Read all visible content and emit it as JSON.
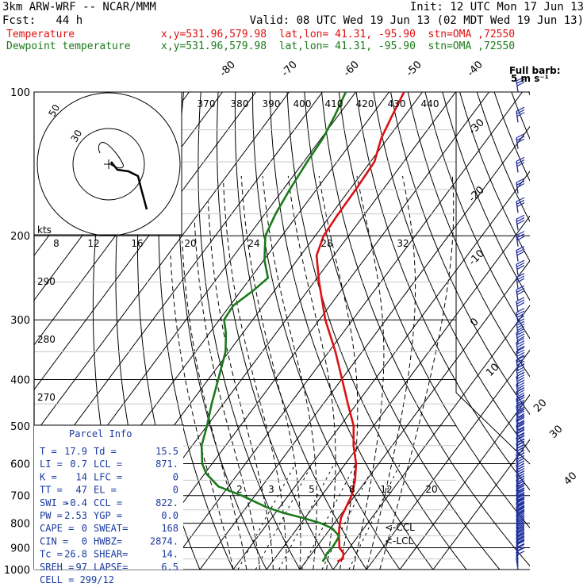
{
  "header": {
    "model": "3km ARW-WRF -- NCAR/MMM",
    "init": "Init: 12 UTC Mon 17 Jun 13",
    "fcst": "Fcst:   44 h",
    "valid": "Valid: 08 UTC Wed 19 Jun 13 (02 MDT Wed 19 Jun 13)",
    "temp_line": {
      "label": "Temperature",
      "info": "x,y=531.96,579.98  lat,lon= 41.31, -95.90  stn=OMA ,72550"
    },
    "dew_line": {
      "label": "Dewpoint temperature",
      "info": "x,y=531.96,579.98  lat,lon= 41.31, -95.90  stn=OMA ,72550"
    }
  },
  "colors": {
    "temperature": "#dd1111",
    "dewpoint": "#1b7a1b",
    "barbs": "#1f2f9f",
    "parcel_text": "#1a3aa0"
  },
  "chart_data": {
    "type": "line",
    "title": "",
    "y_axis": {
      "label": "",
      "scale": "log",
      "ylim": [
        1000,
        100
      ],
      "ticks": [
        100,
        200,
        300,
        400,
        500,
        600,
        700,
        800,
        900,
        1000
      ]
    },
    "series": [
      {
        "name": "Temperature",
        "color": "#dd1111",
        "points": [
          {
            "p": 962,
            "t": 19.5
          },
          {
            "p": 950,
            "t": 20.5
          },
          {
            "p": 925,
            "t": 19.5
          },
          {
            "p": 900,
            "t": 17.0
          },
          {
            "p": 850,
            "t": 14.2
          },
          {
            "p": 820,
            "t": 12.6
          },
          {
            "p": 780,
            "t": 10.8
          },
          {
            "p": 700,
            "t": 9.0
          },
          {
            "p": 650,
            "t": 6.6
          },
          {
            "p": 600,
            "t": 3.2
          },
          {
            "p": 550,
            "t": -1.6
          },
          {
            "p": 500,
            "t": -6.0
          },
          {
            "p": 450,
            "t": -12.6
          },
          {
            "p": 400,
            "t": -19.8
          },
          {
            "p": 350,
            "t": -28.0
          },
          {
            "p": 300,
            "t": -38.2
          },
          {
            "p": 250,
            "t": -48.5
          },
          {
            "p": 220,
            "t": -55.2
          },
          {
            "p": 200,
            "t": -57.5
          },
          {
            "p": 180,
            "t": -58.0
          },
          {
            "p": 160,
            "t": -58.2
          },
          {
            "p": 140,
            "t": -58.8
          },
          {
            "p": 125,
            "t": -62.0
          },
          {
            "p": 112,
            "t": -63.8
          },
          {
            "p": 100,
            "t": -65.5
          }
        ]
      },
      {
        "name": "Dewpoint temperature",
        "color": "#1b7a1b",
        "points": [
          {
            "p": 962,
            "t": 15.0
          },
          {
            "p": 950,
            "t": 15.0
          },
          {
            "p": 925,
            "t": 14.5
          },
          {
            "p": 900,
            "t": 14.8
          },
          {
            "p": 870,
            "t": 14.6
          },
          {
            "p": 850,
            "t": 14.2
          },
          {
            "p": 820,
            "t": 10.5
          },
          {
            "p": 800,
            "t": 6.0
          },
          {
            "p": 780,
            "t": -0.5
          },
          {
            "p": 760,
            "t": -8.0
          },
          {
            "p": 740,
            "t": -14.0
          },
          {
            "p": 700,
            "t": -24.0
          },
          {
            "p": 670,
            "t": -33.0
          },
          {
            "p": 630,
            "t": -39.5
          },
          {
            "p": 600,
            "t": -43.0
          },
          {
            "p": 550,
            "t": -47.2
          },
          {
            "p": 500,
            "t": -50.0
          },
          {
            "p": 450,
            "t": -53.5
          },
          {
            "p": 400,
            "t": -57.0
          },
          {
            "p": 350,
            "t": -61.0
          },
          {
            "p": 320,
            "t": -65.0
          },
          {
            "p": 300,
            "t": -68.6
          },
          {
            "p": 280,
            "t": -69.0
          },
          {
            "p": 260,
            "t": -66.3
          },
          {
            "p": 245,
            "t": -64.8
          },
          {
            "p": 225,
            "t": -69.8
          },
          {
            "p": 200,
            "t": -75.0
          },
          {
            "p": 180,
            "t": -76.8
          },
          {
            "p": 160,
            "t": -78.0
          },
          {
            "p": 140,
            "t": -79.0
          },
          {
            "p": 125,
            "t": -79.5
          },
          {
            "p": 112,
            "t": -81.0
          },
          {
            "p": 100,
            "t": -83.0
          }
        ]
      }
    ],
    "isotherm_labels": [
      "-80",
      "-70",
      "-60",
      "-50",
      "-40",
      "-30",
      "-20",
      "-10",
      "0",
      "10",
      "20",
      "30",
      "40"
    ],
    "theta_e_labels": [
      "370",
      "380",
      "390",
      "400",
      "410",
      "420",
      "430",
      "440"
    ],
    "mixing_ratio_labels": [
      "2",
      "3",
      "5",
      "8",
      "12",
      "20"
    ],
    "theta_labels": [
      "290",
      "280",
      "270"
    ],
    "ccl_label": "<-CCL",
    "lcl_label": "<-LCL",
    "hodograph": {
      "units_label": "kts",
      "ring_labels": [
        "50",
        "30"
      ],
      "speed_labels": [
        "8",
        "12",
        "16",
        "20",
        "24",
        "28",
        "32"
      ]
    },
    "wind_barbs": {
      "unit_label": "Full barb:\n5 m s⁻¹",
      "speeds_ms": [
        3,
        5,
        9,
        12,
        12,
        13,
        15,
        15,
        16,
        17,
        17,
        18,
        19,
        19,
        20,
        20,
        20,
        21,
        21,
        21,
        22,
        22,
        22,
        22,
        22,
        23,
        23,
        23,
        23,
        23,
        23,
        23,
        23,
        22,
        22,
        22,
        22,
        21,
        21,
        21,
        21,
        20,
        20,
        20,
        20,
        19,
        19,
        19,
        19,
        19,
        19,
        18,
        18,
        18,
        17,
        17,
        17,
        16
      ]
    }
  },
  "parcel_info": {
    "title": "Parcel Info",
    "rows": [
      [
        "T  =",
        "17.9",
        "Td =",
        "15.5"
      ],
      [
        "LI =",
        "0.7",
        "LCL =",
        "871."
      ],
      [
        "K  =",
        "14",
        "LFC =",
        "0"
      ],
      [
        "TT =",
        "47",
        "EL  =",
        "0"
      ],
      [
        "SWI =",
        "-0.4",
        "CCL =",
        "822."
      ],
      [
        "PW =",
        "2.53",
        "YGP =",
        "0.0"
      ],
      [
        "CAPE =",
        "0",
        "SWEAT=",
        "168"
      ],
      [
        "CIN =",
        "0",
        "HWBZ=",
        "2874."
      ],
      [
        "Tc =",
        "26.8",
        "SHEAR=",
        "14."
      ],
      [
        "SREH =",
        "97",
        "LAPSE=",
        "6.5"
      ]
    ],
    "cell": "CELL = 299/12"
  }
}
